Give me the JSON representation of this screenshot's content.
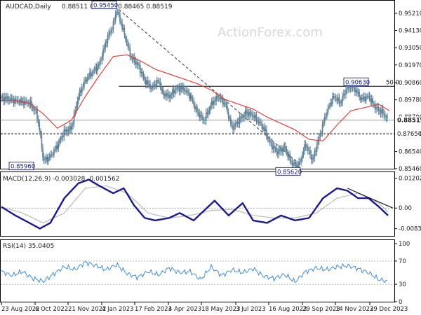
{
  "header": {
    "symbol": "AUDCAD,Daily",
    "ohlc": "0.88511 0.88622 0.88465 0.88519",
    "watermark": "ActionForex.com"
  },
  "chart_data": [
    {
      "type": "line",
      "title": "AUDCAD,Daily",
      "y_ticks": [
        "0.95210",
        "0.94130",
        "0.93050",
        "0.91970",
        "0.90860",
        "0.89780",
        "0.88700",
        "0.87650",
        "0.86540",
        "0.85460"
      ],
      "ylim": [
        0.8546,
        0.9521
      ],
      "x_ticks": [
        "23 Aug 2022",
        "6 Oct 2022",
        "21 Nov 2022",
        "4 Jan 2023",
        "17 Feb 2023",
        "4 Apr 2023",
        "18 May 2023",
        "3 Jul 2023",
        "16 Aug 2023",
        "29 Sep 2023",
        "14 Nov 2023",
        "29 Dec 2023"
      ],
      "series": [
        {
          "name": "",
          "kind": "price",
          "x": [
            0,
            10,
            20,
            30,
            40,
            50,
            55,
            60,
            70,
            80,
            90,
            100,
            110,
            120,
            130,
            140,
            150,
            160,
            165,
            175,
            185,
            195,
            205,
            215,
            225,
            230,
            240,
            250,
            260,
            270,
            280,
            290,
            300,
            310,
            320,
            330,
            340,
            350,
            360,
            375,
            385,
            395,
            405,
            415,
            425,
            435,
            445,
            455,
            465,
            475,
            485,
            495,
            505,
            515,
            525,
            535,
            545,
            553
          ],
          "values": [
            0.899,
            0.8985,
            0.897,
            0.8965,
            0.896,
            0.89,
            0.878,
            0.8596,
            0.862,
            0.869,
            0.878,
            0.88,
            0.9,
            0.91,
            0.915,
            0.92,
            0.935,
            0.945,
            0.9545,
            0.94,
            0.925,
            0.92,
            0.91,
            0.905,
            0.91,
            0.902,
            0.9,
            0.905,
            0.905,
            0.9,
            0.89,
            0.885,
            0.895,
            0.9,
            0.895,
            0.88,
            0.885,
            0.89,
            0.888,
            0.88,
            0.87,
            0.865,
            0.868,
            0.858,
            0.8562,
            0.87,
            0.86,
            0.875,
            0.89,
            0.9,
            0.896,
            0.9063,
            0.905,
            0.898,
            0.9,
            0.893,
            0.89,
            0.8852
          ]
        },
        {
          "name": "",
          "kind": "moving-average",
          "x": [
            0,
            20,
            40,
            60,
            80,
            100,
            120,
            140,
            160,
            180,
            200,
            220,
            240,
            260,
            280,
            300,
            320,
            340,
            360,
            380,
            400,
            420,
            440,
            460,
            480,
            500,
            520,
            540,
            555
          ],
          "values": [
            0.8975,
            0.8972,
            0.8955,
            0.889,
            0.88,
            0.885,
            0.9,
            0.913,
            0.925,
            0.926,
            0.922,
            0.917,
            0.914,
            0.911,
            0.908,
            0.904,
            0.898,
            0.895,
            0.892,
            0.887,
            0.883,
            0.879,
            0.873,
            0.872,
            0.882,
            0.891,
            0.893,
            0.895,
            0.891
          ]
        }
      ],
      "horizontal_lines": [
        {
          "value": 0.9063,
          "label": "50.0"
        },
        {
          "value": 0.88519,
          "label": "0.88519"
        },
        {
          "value": 0.8765,
          "label": "0.87650"
        }
      ],
      "price_labels": [
        "0.95450",
        "0.85960",
        "0.85620",
        "0.90630"
      ],
      "trendlines": [
        {
          "from": [
            168,
            0.9545
          ],
          "to": [
            430,
            0.8562
          ],
          "style": "dashed"
        }
      ]
    },
    {
      "type": "line",
      "title": "MACD(12,26,9) -0.003028 -0.001562",
      "y_ticks": [
        "0.012028",
        "0.00",
        "-0.008331"
      ],
      "ylim": [
        -0.0104,
        0.0128
      ],
      "series": [
        {
          "name": "",
          "kind": "macd",
          "x": [
            0,
            20,
            40,
            55,
            70,
            90,
            110,
            125,
            140,
            160,
            175,
            190,
            205,
            220,
            240,
            255,
            275,
            290,
            305,
            325,
            345,
            360,
            380,
            400,
            420,
            440,
            460,
            480,
            495,
            510,
            525,
            540,
            553
          ],
          "values": [
            0.0005,
            -0.003,
            -0.006,
            -0.0083,
            -0.006,
            0.004,
            0.01,
            0.0115,
            0.009,
            0.006,
            0.008,
            0.001,
            -0.004,
            -0.005,
            -0.004,
            -0.002,
            -0.005,
            -0.001,
            0.003,
            -0.003,
            0.002,
            -0.005,
            -0.006,
            -0.003,
            -0.005,
            -0.004,
            0.004,
            0.008,
            0.007,
            0.004,
            0.004,
            0.0005,
            -0.003
          ]
        },
        {
          "name": "",
          "kind": "signal",
          "x": [
            0,
            30,
            60,
            90,
            120,
            150,
            180,
            210,
            240,
            270,
            300,
            330,
            360,
            390,
            420,
            450,
            480,
            510,
            540,
            553
          ],
          "values": [
            0.0005,
            -0.002,
            -0.006,
            -0.002,
            0.008,
            0.009,
            0.006,
            -0.002,
            -0.004,
            -0.003,
            -0.001,
            -0.0005,
            -0.003,
            -0.004,
            -0.004,
            -0.002,
            0.004,
            0.006,
            0.002,
            -0.0016
          ]
        }
      ],
      "trendlines": [
        {
          "from": [
            495,
            0.008
          ],
          "to": [
            560,
            0.0
          ]
        }
      ]
    },
    {
      "type": "line",
      "title": "RSI(14) 35.0405",
      "y_ticks": [
        "100",
        "70",
        "30",
        "0"
      ],
      "ylim": [
        0,
        100
      ],
      "series": [
        {
          "name": "",
          "kind": "rsi",
          "x": [
            0,
            15,
            30,
            45,
            60,
            75,
            90,
            105,
            120,
            135,
            150,
            165,
            180,
            195,
            210,
            225,
            240,
            255,
            270,
            285,
            300,
            315,
            330,
            345,
            360,
            375,
            390,
            405,
            420,
            435,
            450,
            465,
            480,
            495,
            510,
            525,
            540,
            553
          ],
          "values": [
            52,
            45,
            52,
            40,
            35,
            48,
            60,
            55,
            68,
            62,
            55,
            64,
            48,
            42,
            52,
            46,
            58,
            50,
            52,
            38,
            60,
            45,
            55,
            50,
            57,
            44,
            40,
            47,
            34,
            52,
            58,
            55,
            60,
            62,
            57,
            50,
            38,
            35
          ]
        }
      ]
    }
  ]
}
